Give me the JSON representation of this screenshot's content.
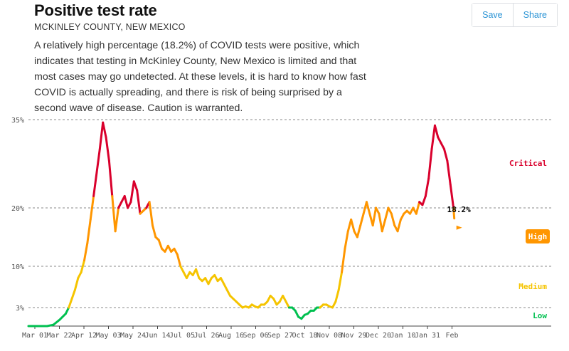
{
  "header": {
    "title": "Positive test rate",
    "subtitle": "MCKINLEY COUNTY, NEW MEXICO",
    "summary": "A relatively high percentage (18.2%) of COVID tests were positive, which indicates that testing in McKinley County, New Mexico is limited and that most cases may go undetected. At these levels, it is hard to know how fast COVID is actually spreading, and there is risk of being surprised by a second wave of disease. Caution is warranted."
  },
  "actions": {
    "save_label": "Save",
    "share_label": "Share"
  },
  "colors": {
    "low": "#00c050",
    "medium": "#f5c400",
    "high": "#ff9600",
    "critical": "#d9002c"
  },
  "chart_data": {
    "type": "line",
    "title": "Positive test rate",
    "ylim": [
      0,
      35
    ],
    "grid": true,
    "y_ticks": [
      {
        "value": 3,
        "label": "3%"
      },
      {
        "value": 10,
        "label": "10%"
      },
      {
        "value": 20,
        "label": "20%"
      },
      {
        "value": 35,
        "label": "35%"
      }
    ],
    "x_ticks": [
      "Mar 01",
      "Mar 22",
      "Apr 12",
      "May 03",
      "May 24",
      "Jun 14",
      "Jul 05",
      "Jul 26",
      "Aug 16",
      "Sep 06",
      "Sep 27",
      "Oct 18",
      "Nov 08",
      "Nov 29",
      "Dec 20",
      "Jan 10",
      "Jan 31",
      "Feb"
    ],
    "zones": [
      {
        "label": "Low",
        "min": 0,
        "max": 3,
        "color": "#00c050"
      },
      {
        "label": "Medium",
        "min": 3,
        "max": 10,
        "color": "#f5c400"
      },
      {
        "label": "High",
        "min": 10,
        "max": 20,
        "color": "#ff9600"
      },
      {
        "label": "Critical",
        "min": 20,
        "max": 35,
        "color": "#d9002c"
      }
    ],
    "current_value_label": "18.2%",
    "last_value": 18.2,
    "series": [
      {
        "points": [
          [
            0,
            0
          ],
          [
            12,
            0
          ],
          [
            16,
            0.2
          ],
          [
            20,
            1
          ],
          [
            24,
            2
          ],
          [
            26,
            3
          ],
          [
            28,
            4.5
          ],
          [
            30,
            6
          ],
          [
            32,
            8
          ],
          [
            34,
            9
          ],
          [
            36,
            11
          ],
          [
            38,
            14
          ],
          [
            40,
            18
          ],
          [
            42,
            22
          ],
          [
            44,
            26
          ],
          [
            46,
            30
          ],
          [
            48,
            34.5
          ],
          [
            50,
            32
          ],
          [
            52,
            28
          ],
          [
            54,
            22
          ],
          [
            56,
            16
          ],
          [
            58,
            20
          ],
          [
            60,
            21
          ],
          [
            62,
            22
          ],
          [
            64,
            20
          ],
          [
            66,
            21
          ],
          [
            68,
            24.5
          ],
          [
            70,
            23
          ],
          [
            72,
            19
          ],
          [
            74,
            19.5
          ],
          [
            76,
            20
          ],
          [
            78,
            21
          ],
          [
            80,
            17
          ],
          [
            82,
            15
          ],
          [
            84,
            14.5
          ],
          [
            86,
            13
          ],
          [
            88,
            12.5
          ],
          [
            90,
            13.5
          ],
          [
            92,
            12.5
          ],
          [
            94,
            13
          ],
          [
            96,
            12
          ],
          [
            98,
            10
          ],
          [
            100,
            9
          ],
          [
            102,
            8
          ],
          [
            104,
            9
          ],
          [
            106,
            8.5
          ],
          [
            108,
            9.5
          ],
          [
            110,
            8
          ],
          [
            112,
            7.5
          ],
          [
            114,
            8
          ],
          [
            116,
            7
          ],
          [
            118,
            8
          ],
          [
            120,
            8.5
          ],
          [
            122,
            7.5
          ],
          [
            124,
            8
          ],
          [
            126,
            7
          ],
          [
            128,
            6
          ],
          [
            130,
            5
          ],
          [
            132,
            4.5
          ],
          [
            134,
            4
          ],
          [
            136,
            3.5
          ],
          [
            138,
            3
          ],
          [
            140,
            3.2
          ],
          [
            142,
            3
          ],
          [
            144,
            3.5
          ],
          [
            146,
            3.2
          ],
          [
            148,
            3
          ],
          [
            150,
            3.5
          ],
          [
            152,
            3.5
          ],
          [
            154,
            4
          ],
          [
            156,
            5
          ],
          [
            158,
            4.5
          ],
          [
            160,
            3.5
          ],
          [
            162,
            4
          ],
          [
            164,
            5
          ],
          [
            166,
            4
          ],
          [
            168,
            3
          ],
          [
            170,
            3
          ],
          [
            172,
            2.5
          ],
          [
            174,
            1.5
          ],
          [
            176,
            1.2
          ],
          [
            178,
            1.8
          ],
          [
            180,
            2
          ],
          [
            182,
            2.5
          ],
          [
            184,
            2.5
          ],
          [
            186,
            3
          ],
          [
            188,
            3
          ],
          [
            190,
            3.5
          ],
          [
            192,
            3.5
          ],
          [
            194,
            3.2
          ],
          [
            196,
            3
          ],
          [
            198,
            4
          ],
          [
            200,
            6
          ],
          [
            202,
            9
          ],
          [
            204,
            13
          ],
          [
            206,
            16
          ],
          [
            208,
            18
          ],
          [
            210,
            16
          ],
          [
            212,
            15
          ],
          [
            214,
            17
          ],
          [
            216,
            19
          ],
          [
            218,
            21
          ],
          [
            220,
            19
          ],
          [
            222,
            17
          ],
          [
            224,
            20
          ],
          [
            226,
            19
          ],
          [
            228,
            16
          ],
          [
            230,
            18
          ],
          [
            232,
            20
          ],
          [
            234,
            19
          ],
          [
            236,
            17
          ],
          [
            238,
            16
          ],
          [
            240,
            18
          ],
          [
            242,
            19
          ],
          [
            244,
            19.5
          ],
          [
            246,
            19
          ],
          [
            248,
            20
          ],
          [
            250,
            19
          ],
          [
            252,
            21
          ],
          [
            254,
            20.5
          ],
          [
            256,
            22
          ],
          [
            258,
            25
          ],
          [
            260,
            30
          ],
          [
            262,
            34
          ],
          [
            264,
            32
          ],
          [
            266,
            31
          ],
          [
            268,
            30
          ],
          [
            270,
            28
          ],
          [
            272,
            24
          ],
          [
            274,
            20
          ],
          [
            274.5,
            18.2
          ]
        ]
      }
    ],
    "x_domain": [
      0,
      337
    ]
  }
}
